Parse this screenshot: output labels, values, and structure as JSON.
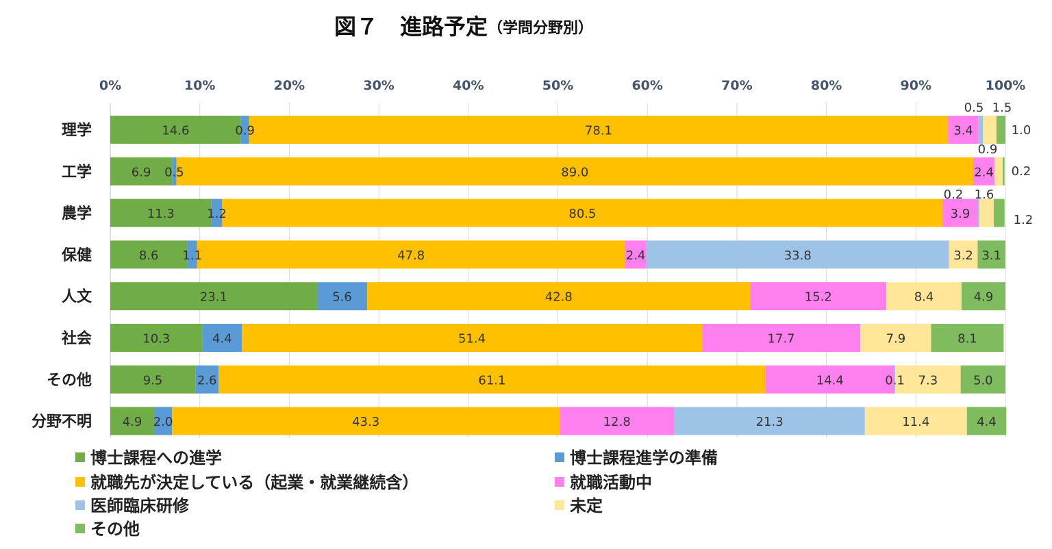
{
  "chart_data": {
    "type": "bar",
    "orientation": "horizontal",
    "stacked": "percent",
    "title": "図７　進路予定",
    "subtitle": "（学問分野別）",
    "xlim": [
      0,
      100
    ],
    "xticks": [
      "0%",
      "10%",
      "20%",
      "30%",
      "40%",
      "50%",
      "60%",
      "70%",
      "80%",
      "90%",
      "100%"
    ],
    "grid": true,
    "legend_position": "bottom",
    "categories": [
      "理学",
      "工学",
      "農学",
      "保健",
      "人文",
      "社会",
      "その他",
      "分野不明"
    ],
    "series": [
      {
        "name": "博士課程への進学",
        "color": "#70ad47",
        "values": [
          14.6,
          6.9,
          11.3,
          8.6,
          23.1,
          10.3,
          9.5,
          4.9
        ]
      },
      {
        "name": "博士課程進学の準備",
        "color": "#5b9bd5",
        "values": [
          0.9,
          0.5,
          1.2,
          1.1,
          5.6,
          4.4,
          2.6,
          2.0
        ]
      },
      {
        "name": "就職先が決定している（起業・就業継続含）",
        "color": "#ffc000",
        "values": [
          78.1,
          89.0,
          80.5,
          47.8,
          42.8,
          51.4,
          61.1,
          43.3
        ]
      },
      {
        "name": "就職活動中",
        "color": "#ff80ee",
        "values": [
          3.4,
          2.4,
          3.9,
          2.4,
          15.2,
          17.7,
          14.4,
          12.8
        ]
      },
      {
        "name": "医師臨床研修",
        "color": "#9dc3e6",
        "values": [
          0.5,
          0,
          0.2,
          33.8,
          0,
          0,
          0.1,
          21.3
        ]
      },
      {
        "name": "未定",
        "color": "#ffe699",
        "values": [
          1.5,
          0.9,
          1.6,
          3.2,
          8.4,
          7.9,
          7.3,
          11.4
        ]
      },
      {
        "name": "その他",
        "color": "#7fbb5f",
        "values": [
          1.0,
          0.2,
          1.2,
          3.1,
          4.9,
          8.1,
          5.0,
          4.4
        ]
      }
    ],
    "labels": [
      [
        "14.6",
        "0.9",
        "78.1",
        "3.4",
        "0.5",
        "1.5",
        "1.0"
      ],
      [
        "6.9",
        "0.5",
        "89.0",
        "2.4",
        "",
        "0.9",
        "0.2"
      ],
      [
        "11.3",
        "1.2",
        "80.5",
        "3.9",
        "0.2",
        "1.6",
        "1.2"
      ],
      [
        "8.6",
        "1.1",
        "47.8",
        "2.4",
        "33.8",
        "3.2",
        "3.1"
      ],
      [
        "23.1",
        "5.6",
        "42.8",
        "15.2",
        "",
        "8.4",
        "4.9"
      ],
      [
        "10.3",
        "4.4",
        "51.4",
        "17.7",
        "",
        "7.9",
        "8.1"
      ],
      [
        "9.5",
        "2.6",
        "61.1",
        "14.4",
        "0.1",
        "7.3",
        "5.0"
      ],
      [
        "4.9",
        "2.0",
        "43.3",
        "12.8",
        "21.3",
        "11.4",
        "4.4"
      ]
    ]
  }
}
